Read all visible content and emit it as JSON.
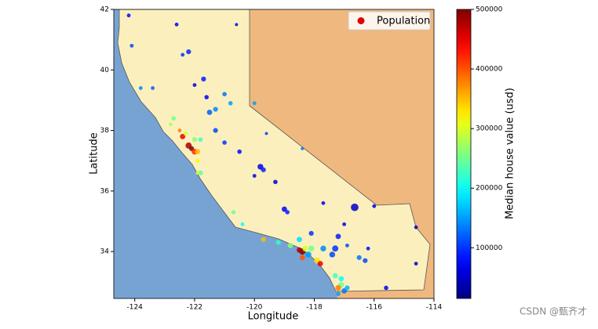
{
  "chart_data": {
    "type": "scatter",
    "xlabel": "Longitude",
    "ylabel": "Latitude",
    "colorbar_label": "Median house value (usd)",
    "xlim": [
      -124.7,
      -114
    ],
    "ylim": [
      32.45,
      42
    ],
    "xticks": [
      -124,
      -122,
      -120,
      -118,
      -116,
      -114
    ],
    "yticks": [
      34,
      36,
      38,
      40,
      42
    ],
    "clim": [
      15000,
      500000
    ],
    "cticks": [
      100000,
      200000,
      300000,
      400000,
      500000
    ],
    "colormap": "jet",
    "legend": "upper right",
    "series": [
      {
        "name": "Population",
        "color": "#e00000",
        "x": [
          -122.4,
          -122.2,
          -122.1,
          -122.0,
          -121.9,
          -122.3,
          -122.0,
          -121.8,
          -122.5,
          -122.7,
          -122.8,
          -121.9,
          -121.8,
          -121.9,
          -120.7,
          -120.4,
          -121.5,
          -121.3,
          -121.3,
          -121.0,
          -120.5,
          -119.8,
          -119.7,
          -119.3,
          -119.0,
          -118.9,
          -120.0,
          -121.7,
          -122.2,
          -122.4,
          -121.6,
          -122.0,
          -121.0,
          -120.8,
          -124.1,
          -124.2,
          -123.4,
          -122.6,
          -120.6,
          -123.8,
          -120.0,
          -118.4,
          -119.6,
          -118.4,
          -118.5,
          -118.3,
          -118.2,
          -118.1,
          -117.9,
          -117.8,
          -118.4,
          -117.7,
          -117.3,
          -117.4,
          -117.2,
          -116.5,
          -116.3,
          -115.6,
          -118.8,
          -119.2,
          -119.7,
          -118.5,
          -118.1,
          -117.0,
          -116.9,
          -117.1,
          -117.2,
          -117.0,
          -117.1,
          -116.9,
          -117.3,
          -117.2,
          -116.2,
          -114.6,
          -114.6,
          -116.0,
          -117.7,
          -116.65
        ],
        "y": [
          37.8,
          37.5,
          37.4,
          37.3,
          37.3,
          37.9,
          37.7,
          37.7,
          38.0,
          38.4,
          38.2,
          37.0,
          36.6,
          36.6,
          35.3,
          34.9,
          38.6,
          38.7,
          38.0,
          37.6,
          37.3,
          36.8,
          36.7,
          36.3,
          35.4,
          35.3,
          36.5,
          39.7,
          40.6,
          40.5,
          39.1,
          39.5,
          39.2,
          38.9,
          40.8,
          41.8,
          39.4,
          41.5,
          41.5,
          39.4,
          38.9,
          37.4,
          37.9,
          34.0,
          34.05,
          34.1,
          33.9,
          34.1,
          33.7,
          33.6,
          33.8,
          34.1,
          34.1,
          33.9,
          34.5,
          33.8,
          33.7,
          32.8,
          34.2,
          34.3,
          34.4,
          34.4,
          34.6,
          34.9,
          34.2,
          32.9,
          32.8,
          32.7,
          33.1,
          32.8,
          33.2,
          32.6,
          34.1,
          34.8,
          33.6,
          35.5,
          35.6,
          35.46
        ],
        "sizes": [
          30,
          40,
          25,
          35,
          30,
          20,
          25,
          20,
          15,
          20,
          15,
          20,
          25,
          15,
          20,
          15,
          30,
          25,
          25,
          20,
          20,
          35,
          25,
          20,
          30,
          20,
          15,
          25,
          25,
          15,
          20,
          15,
          20,
          20,
          15,
          15,
          15,
          15,
          10,
          15,
          15,
          10,
          10,
          40,
          30,
          35,
          40,
          35,
          40,
          30,
          30,
          35,
          40,
          35,
          30,
          25,
          25,
          20,
          30,
          25,
          25,
          30,
          25,
          15,
          15,
          35,
          35,
          30,
          30,
          25,
          30,
          20,
          15,
          15,
          15,
          15,
          15,
          60
        ],
        "values": [
          450000,
          480000,
          500000,
          420000,
          350000,
          300000,
          260000,
          220000,
          380000,
          250000,
          280000,
          320000,
          240000,
          300000,
          250000,
          200000,
          120000,
          140000,
          110000,
          100000,
          80000,
          70000,
          90000,
          60000,
          75000,
          90000,
          65000,
          90000,
          95000,
          100000,
          70000,
          60000,
          130000,
          150000,
          110000,
          80000,
          120000,
          70000,
          60000,
          140000,
          150000,
          130000,
          100000,
          500000,
          480000,
          300000,
          150000,
          250000,
          330000,
          450000,
          400000,
          140000,
          100000,
          110000,
          90000,
          130000,
          110000,
          70000,
          260000,
          220000,
          350000,
          180000,
          100000,
          70000,
          110000,
          250000,
          380000,
          130000,
          200000,
          160000,
          230000,
          150000,
          80000,
          60000,
          50000,
          60000,
          70000,
          50000
        ]
      }
    ]
  },
  "watermark": "CSDN @甄齐才"
}
